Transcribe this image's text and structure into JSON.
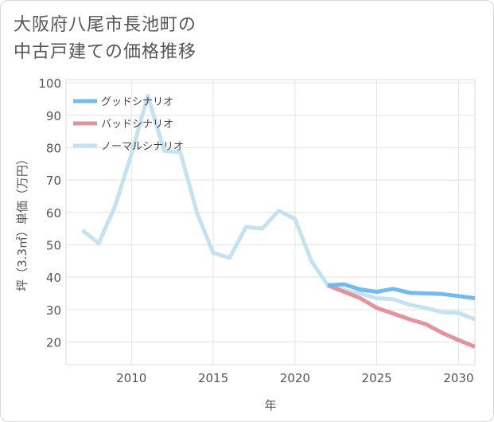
{
  "header": {
    "title_line1": "大阪府八尾市長池町の",
    "title_line2": "中古戸建ての価格推移"
  },
  "chart_data": {
    "type": "line",
    "title": "大阪府八尾市長池町の中古戸建ての価格推移",
    "xlabel": "年",
    "ylabel": "坪（3.3㎡）単価（万円）",
    "xlim": [
      2006,
      2031
    ],
    "ylim": [
      13,
      101
    ],
    "x_ticks": [
      2010,
      2015,
      2020,
      2025,
      2030
    ],
    "y_ticks": [
      20,
      30,
      40,
      50,
      60,
      70,
      80,
      90,
      100
    ],
    "grid": true,
    "legend_position": "top-left",
    "series": [
      {
        "name": "ノーマルシナリオ",
        "color": "#c4e2ef",
        "x": [
          2007,
          2008,
          2009,
          2010,
          2011,
          2012,
          2013,
          2014,
          2015,
          2016,
          2017,
          2018,
          2019,
          2020,
          2021,
          2022,
          2023,
          2024,
          2025,
          2026,
          2027,
          2028,
          2029,
          2030,
          2031
        ],
        "y": [
          54.5,
          50.5,
          62,
          78,
          96,
          79,
          78.5,
          60,
          47.5,
          46,
          55.5,
          55,
          60.5,
          58,
          45,
          37.5,
          36,
          35,
          33.5,
          33.2,
          31.5,
          30.5,
          29.2,
          29,
          27
        ]
      },
      {
        "name": "バッドシナリオ",
        "color": "#e2939b",
        "x": [
          2022,
          2023,
          2024,
          2025,
          2026,
          2027,
          2028,
          2029,
          2030,
          2031
        ],
        "y": [
          37.5,
          35.5,
          33.5,
          30.5,
          28.8,
          27,
          25.5,
          22.8,
          20.6,
          18.5
        ]
      },
      {
        "name": "グッドシナリオ",
        "color": "#72bbef",
        "x": [
          2022,
          2023,
          2024,
          2025,
          2026,
          2027,
          2028,
          2029,
          2030,
          2031
        ],
        "y": [
          37.5,
          37.8,
          36.2,
          35.5,
          36.4,
          35.2,
          35,
          34.8,
          34.2,
          33.5
        ]
      }
    ],
    "legend": [
      {
        "name": "グッドシナリオ",
        "color": "#72bbef"
      },
      {
        "name": "バッドシナリオ",
        "color": "#e2939b"
      },
      {
        "name": "ノーマルシナリオ",
        "color": "#c4e2ef"
      }
    ]
  }
}
